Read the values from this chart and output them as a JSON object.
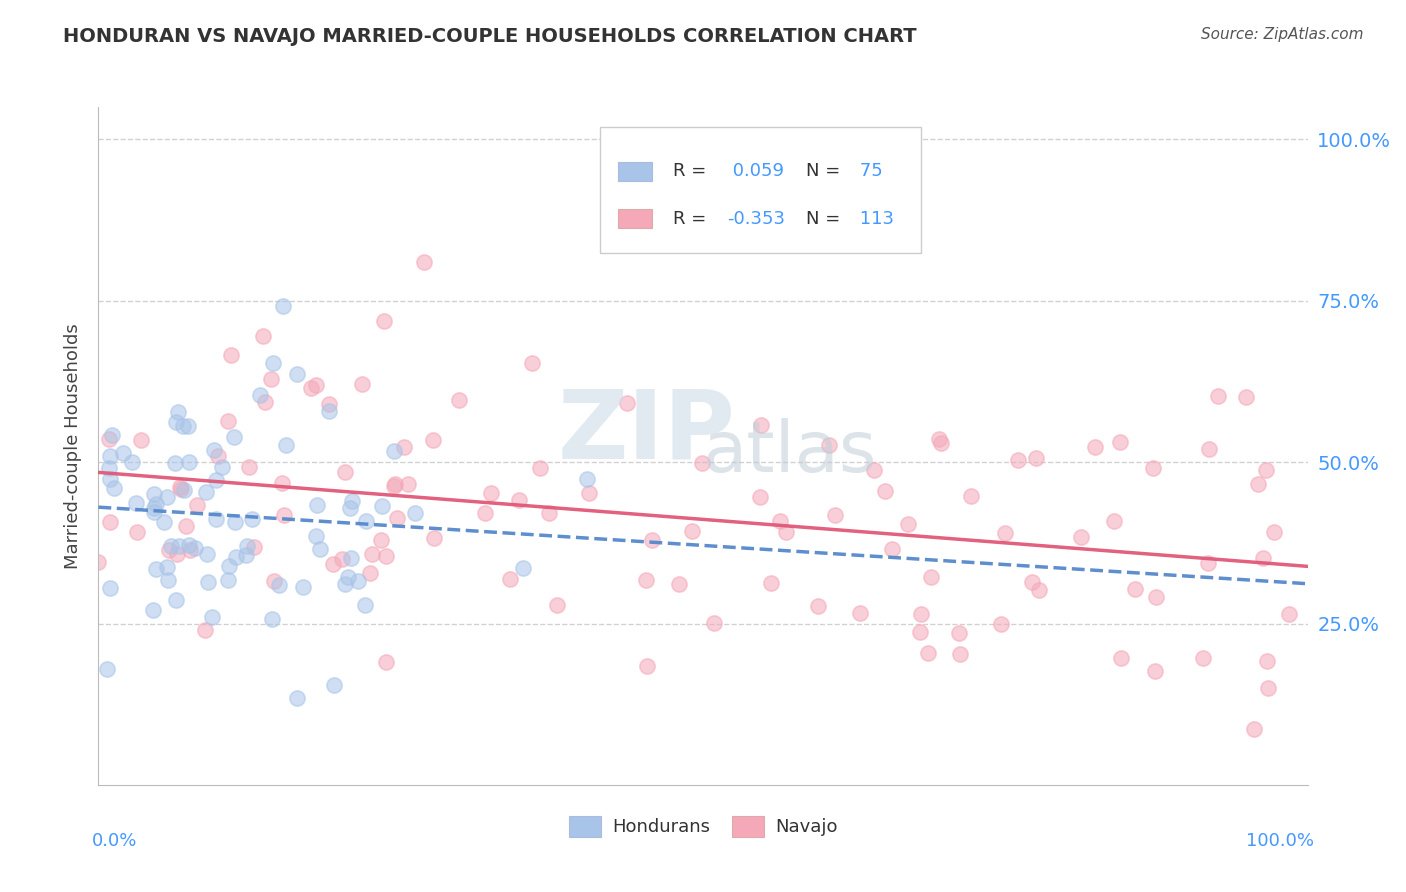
{
  "title": "HONDURAN VS NAVAJO MARRIED-COUPLE HOUSEHOLDS CORRELATION CHART",
  "source": "Source: ZipAtlas.com",
  "ylabel": "Married-couple Households",
  "xlim": [
    0,
    100
  ],
  "ylim": [
    0,
    105
  ],
  "ytick_labels": [
    "25.0%",
    "50.0%",
    "75.0%",
    "100.0%"
  ],
  "ytick_values": [
    25,
    50,
    75,
    100
  ],
  "honduran_color": "#a8c4e8",
  "navajo_color": "#f4a8b8",
  "honduran_line_color": "#5588cc",
  "navajo_line_color": "#e05878",
  "R_honduran": 0.059,
  "N_honduran": 75,
  "R_navajo": -0.353,
  "N_navajo": 113,
  "label_color": "#4499ff",
  "background_color": "#ffffff",
  "grid_color": "#cccccc"
}
